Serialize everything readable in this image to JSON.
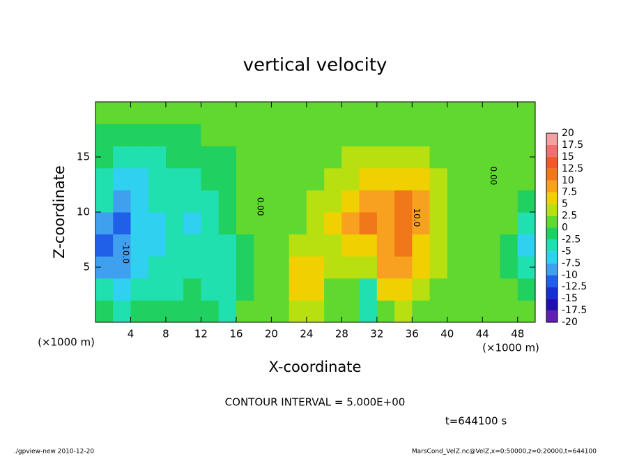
{
  "chart_data": {
    "type": "contour",
    "title": "vertical velocity",
    "xlabel": "X-coordinate",
    "ylabel": "Z-coordinate",
    "x_unit": "(×1000 m)",
    "y_unit": "(×1000 m)",
    "xlim": [
      0,
      50
    ],
    "ylim": [
      0,
      20
    ],
    "xticks": [
      4,
      8,
      12,
      16,
      20,
      24,
      28,
      32,
      36,
      40,
      44,
      48
    ],
    "yticks": [
      5,
      10,
      15
    ],
    "x": [
      1,
      3,
      5,
      7,
      9,
      11,
      13,
      15,
      17,
      19,
      21,
      23,
      25,
      27,
      29,
      31,
      33,
      35,
      37,
      39,
      41,
      43,
      45,
      47,
      49
    ],
    "z": [
      1,
      3,
      5,
      7,
      9,
      11,
      13,
      15,
      17,
      19
    ],
    "values": [
      [
        -2,
        -3,
        -2,
        -1,
        -2,
        -1,
        -2,
        -3,
        0,
        1,
        1,
        3,
        3,
        1,
        0,
        -5,
        2,
        3,
        2,
        1,
        1,
        1,
        1,
        0,
        0
      ],
      [
        -5,
        -6,
        -4,
        -3,
        -3,
        -2,
        -3,
        -4,
        -1,
        1,
        2,
        5,
        6,
        2,
        1,
        -3,
        5,
        6,
        4,
        2,
        1,
        1,
        1,
        0,
        -1
      ],
      [
        -9,
        -10,
        -6,
        -5,
        -4,
        -3,
        -4,
        -3,
        -1,
        1,
        2,
        7,
        7,
        3,
        3,
        4,
        8,
        9,
        6,
        3,
        1,
        1,
        0,
        -1,
        -3
      ],
      [
        -12,
        -9,
        -7,
        -6,
        -5,
        -4,
        -5,
        -3,
        -1,
        1,
        2,
        4,
        4,
        3,
        7,
        6,
        9,
        11,
        7,
        3,
        2,
        1,
        1,
        -1,
        -6
      ],
      [
        -9,
        -11,
        -7,
        -6,
        -5,
        -6,
        -4,
        -2,
        0,
        1,
        1,
        2,
        3,
        5,
        8,
        10,
        9,
        10,
        8,
        4,
        2,
        1,
        1,
        0,
        -5
      ],
      [
        -5,
        -8,
        -7,
        -5,
        -4,
        -5,
        -3,
        -2,
        0,
        1,
        1,
        2,
        3,
        4,
        6,
        8,
        9,
        11,
        8,
        4,
        2,
        1,
        1,
        0,
        -2
      ],
      [
        -3,
        -6,
        -6,
        -4,
        -3,
        -3,
        -2,
        -1,
        0,
        1,
        1,
        2,
        2,
        3,
        4,
        5,
        6,
        7,
        5,
        3,
        1,
        1,
        1,
        0,
        0
      ],
      [
        -2,
        -4,
        -4,
        -3,
        -2,
        -2,
        -1,
        -1,
        0,
        1,
        1,
        1,
        1,
        2,
        3,
        3,
        4,
        4,
        3,
        2,
        1,
        1,
        1,
        0,
        0
      ],
      [
        -1,
        -2,
        -2,
        -1,
        -1,
        -1,
        0,
        0,
        0,
        1,
        1,
        1,
        1,
        1,
        1,
        2,
        2,
        2,
        2,
        1,
        1,
        1,
        1,
        0,
        0
      ],
      [
        0,
        0,
        0,
        0,
        0,
        0,
        0,
        0,
        1,
        1,
        1,
        1,
        1,
        1,
        1,
        1,
        1,
        1,
        1,
        1,
        1,
        1,
        1,
        0,
        0
      ]
    ],
    "levels": [
      -20,
      -17.5,
      -15,
      -12.5,
      -10,
      -7.5,
      -5,
      -2.5,
      0,
      2.5,
      5,
      7.5,
      10,
      12.5,
      15,
      17.5,
      20
    ],
    "colors": [
      "#6020b0",
      "#2010b0",
      "#1830d0",
      "#2060e8",
      "#40a0f0",
      "#30d0f0",
      "#20e0b0",
      "#20d060",
      "#60d830",
      "#b8e010",
      "#f0d000",
      "#f8a020",
      "#f07818",
      "#f05a2a",
      "#f07070",
      "#f4a0a0"
    ],
    "contour_labels": [
      {
        "text": "0.00",
        "x": 18.7,
        "z": 10.5
      },
      {
        "text": "-10.0",
        "x": 3.4,
        "z": 6.3
      },
      {
        "text": "10.0",
        "x": 36.5,
        "z": 9.5
      },
      {
        "text": "0.00",
        "x": 45.2,
        "z": 13.3
      }
    ],
    "contour_interval": "CONTOUR INTERVAL = 5.000E+00",
    "time": "t=644100 s",
    "footer_left": "./gpview-new  2010-12-20",
    "footer_right": "MarsCond_VelZ.nc@VelZ,x=0:50000,z=0:20000,t=644100"
  }
}
